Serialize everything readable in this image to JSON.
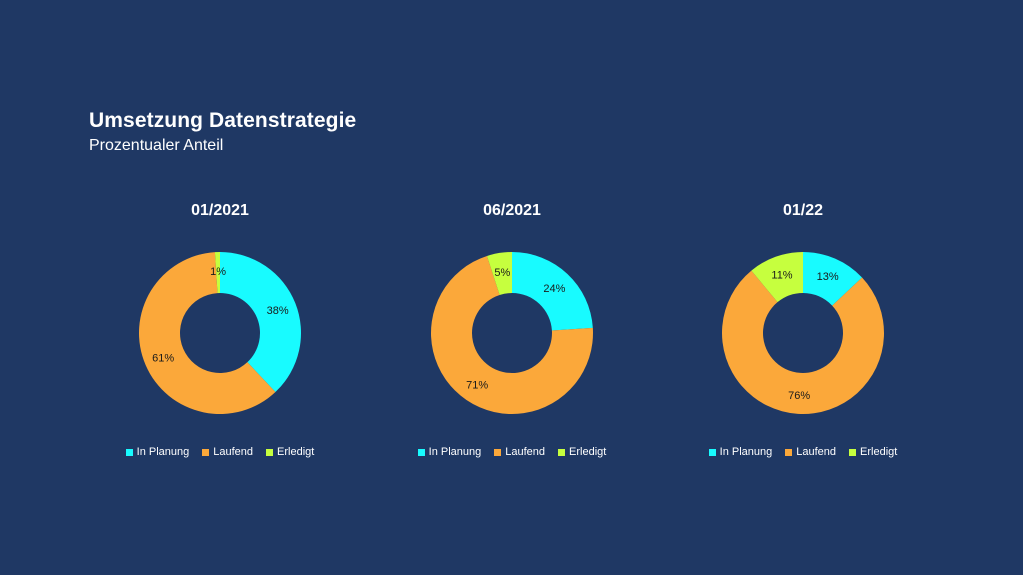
{
  "header": {
    "title": "Umsetzung Datenstrategie",
    "subtitle": "Prozentualer Anteil"
  },
  "legend": [
    {
      "label": "In Planung",
      "color": "#18fbff"
    },
    {
      "label": "Laufend",
      "color": "#fba83a"
    },
    {
      "label": "Erledigt",
      "color": "#c6ff3e"
    }
  ],
  "chart_data": [
    {
      "type": "pie",
      "variant": "donut",
      "title": "01/2021",
      "categories": [
        "In Planung",
        "Laufend",
        "Erledigt"
      ],
      "values": [
        38,
        61,
        1
      ],
      "labels": [
        "38%",
        "61%",
        "1%"
      ],
      "colors": [
        "#18fbff",
        "#fba83a",
        "#c6ff3e"
      ],
      "legend_position": "bottom"
    },
    {
      "type": "pie",
      "variant": "donut",
      "title": "06/2021",
      "categories": [
        "In Planung",
        "Laufend",
        "Erledigt"
      ],
      "values": [
        24,
        71,
        5
      ],
      "labels": [
        "24%",
        "71%",
        "5%"
      ],
      "colors": [
        "#18fbff",
        "#fba83a",
        "#c6ff3e"
      ],
      "legend_position": "bottom"
    },
    {
      "type": "pie",
      "variant": "donut",
      "title": "01/22",
      "categories": [
        "In Planung",
        "Laufend",
        "Erledigt"
      ],
      "values": [
        13,
        76,
        11
      ],
      "labels": [
        "13%",
        "76%",
        "11%"
      ],
      "colors": [
        "#18fbff",
        "#fba83a",
        "#c6ff3e"
      ],
      "legend_position": "bottom"
    }
  ]
}
